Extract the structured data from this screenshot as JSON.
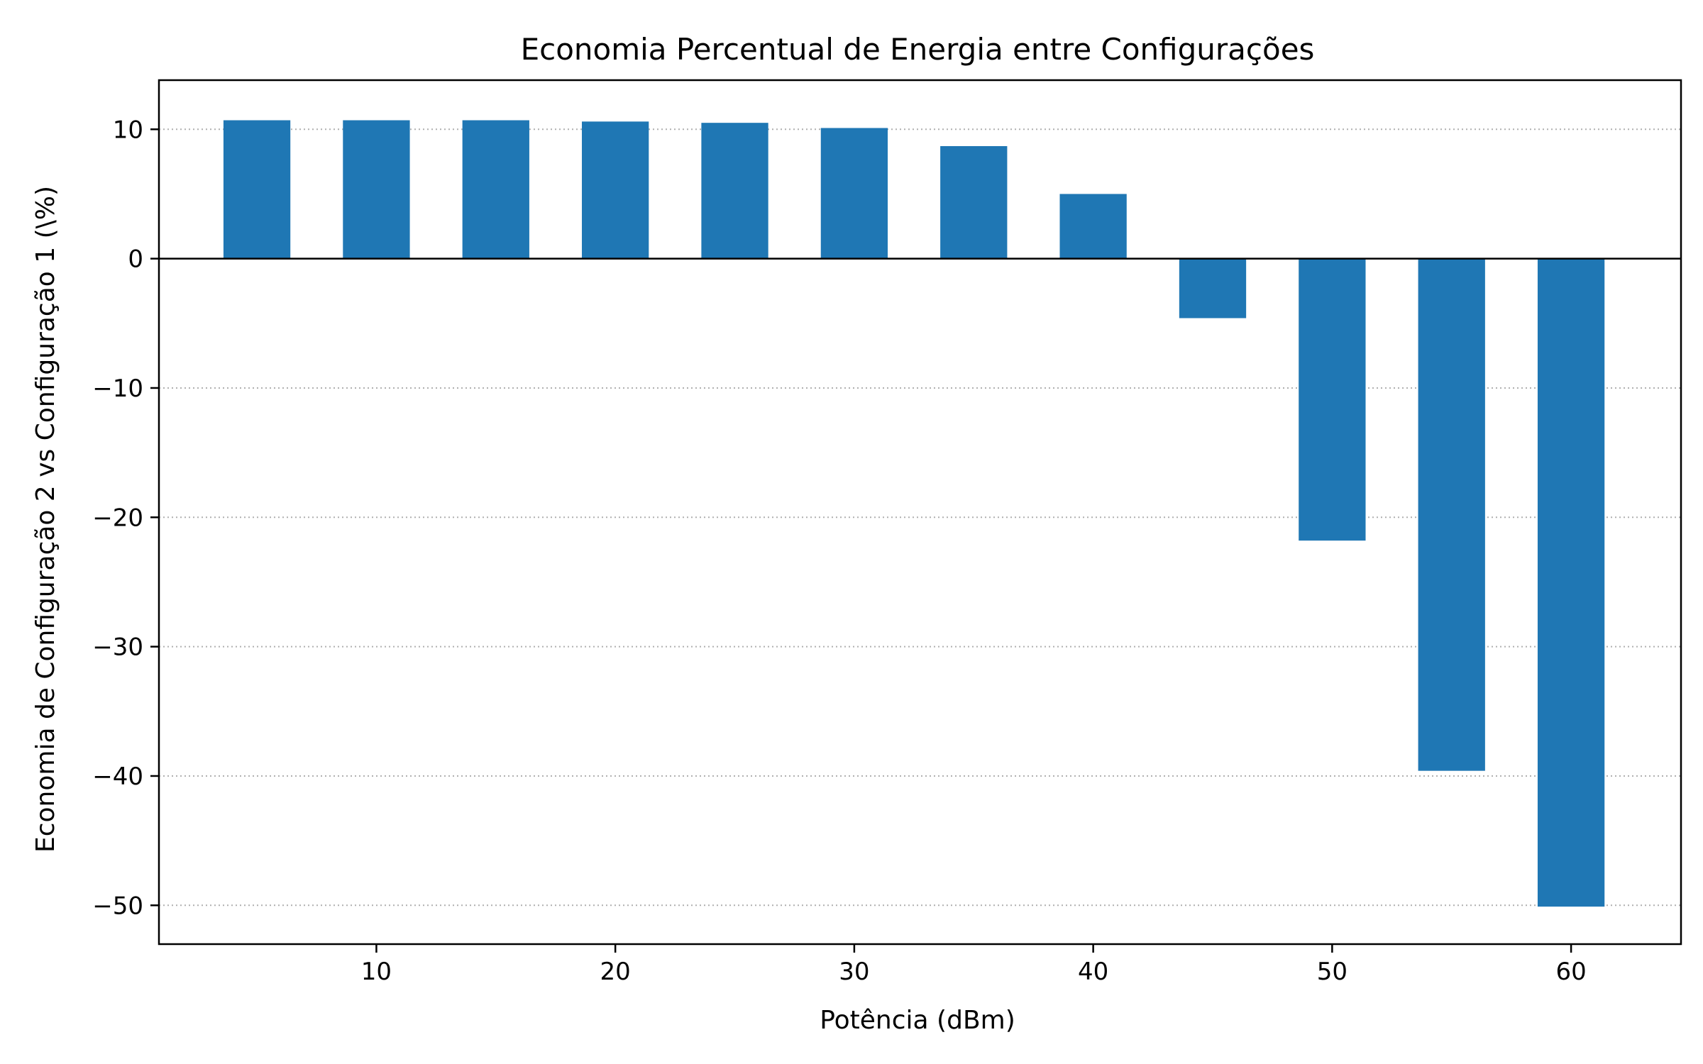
{
  "chart_data": {
    "type": "bar",
    "title": "Economia Percentual de Energia entre Configurações",
    "xlabel": "Potência (dBm)",
    "ylabel": "Economia de Configuração 2 vs Configuração 1 (\\%)",
    "x": [
      5,
      10,
      15,
      20,
      25,
      30,
      35,
      40,
      45,
      50,
      55,
      60
    ],
    "values": [
      10.7,
      10.7,
      10.7,
      10.6,
      10.5,
      10.1,
      8.7,
      5.0,
      -4.6,
      -21.8,
      -39.6,
      -50.1
    ],
    "bar_width": 2.8,
    "xlim": [
      0.9,
      64.6
    ],
    "ylim": [
      -53,
      13.8
    ],
    "xticks": [
      10,
      20,
      30,
      40,
      50,
      60
    ],
    "yticks": [
      10,
      0,
      -10,
      -20,
      -30,
      -40,
      -50
    ],
    "grid": "y-dotted",
    "bar_color": "#1f77b4"
  }
}
